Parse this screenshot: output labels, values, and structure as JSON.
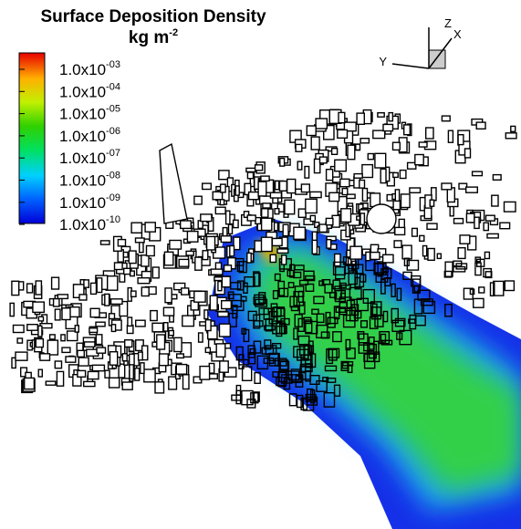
{
  "legend": {
    "title": "Surface Deposition Density",
    "unit": "kg m",
    "unit_exponent": "-2",
    "levels": [
      {
        "base": "1.0x10",
        "exponent": "-03"
      },
      {
        "base": "1.0x10",
        "exponent": "-04"
      },
      {
        "base": "1.0x10",
        "exponent": "-05"
      },
      {
        "base": "1.0x10",
        "exponent": "-06"
      },
      {
        "base": "1.0x10",
        "exponent": "-07"
      },
      {
        "base": "1.0x10",
        "exponent": "-08"
      },
      {
        "base": "1.0x10",
        "exponent": "-09"
      },
      {
        "base": "1.0x10",
        "exponent": "-10"
      }
    ]
  },
  "axes_triad": {
    "z": "Z",
    "x": "X",
    "y": "Y"
  }
}
